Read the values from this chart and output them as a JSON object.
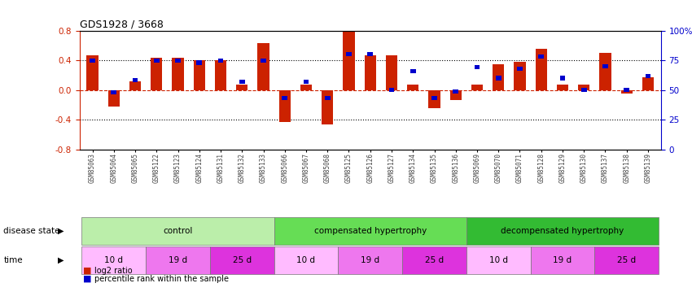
{
  "title": "GDS1928 / 3668",
  "samples": [
    "GSM85063",
    "GSM85064",
    "GSM85065",
    "GSM85122",
    "GSM85123",
    "GSM85124",
    "GSM85131",
    "GSM85132",
    "GSM85133",
    "GSM85066",
    "GSM85067",
    "GSM85068",
    "GSM85125",
    "GSM85126",
    "GSM85127",
    "GSM85134",
    "GSM85135",
    "GSM85136",
    "GSM85069",
    "GSM85070",
    "GSM85071",
    "GSM85128",
    "GSM85129",
    "GSM85130",
    "GSM85137",
    "GSM85138",
    "GSM85139"
  ],
  "log2_ratio": [
    0.47,
    -0.22,
    0.12,
    0.43,
    0.43,
    0.4,
    0.4,
    0.07,
    0.63,
    -0.43,
    0.07,
    -0.46,
    0.8,
    0.47,
    0.47,
    0.07,
    -0.24,
    -0.13,
    0.07,
    0.35,
    0.38,
    0.55,
    0.07,
    0.07,
    0.5,
    -0.05,
    0.17
  ],
  "percentile": [
    75,
    48,
    58,
    75,
    75,
    73,
    75,
    57,
    75,
    43,
    57,
    43,
    80,
    80,
    50,
    66,
    43,
    49,
    69,
    60,
    68,
    78,
    60,
    50,
    70,
    50,
    62
  ],
  "bar_color": "#cc2200",
  "point_color": "#0000cc",
  "zero_line_color": "#cc2200",
  "yticks_left": [
    -0.8,
    -0.4,
    0.0,
    0.4,
    0.8
  ],
  "yticks_right": [
    0,
    25,
    50,
    75,
    100
  ],
  "disease_states": [
    {
      "label": "control",
      "start": 0,
      "end": 9,
      "color": "#bbeeaa"
    },
    {
      "label": "compensated hypertrophy",
      "start": 9,
      "end": 18,
      "color": "#66dd55"
    },
    {
      "label": "decompensated hypertrophy",
      "start": 18,
      "end": 27,
      "color": "#33bb33"
    }
  ],
  "time_groups": [
    {
      "label": "10 d",
      "start": 0,
      "end": 3,
      "color": "#ffbbff"
    },
    {
      "label": "19 d",
      "start": 3,
      "end": 6,
      "color": "#ee77ee"
    },
    {
      "label": "25 d",
      "start": 6,
      "end": 9,
      "color": "#dd33dd"
    },
    {
      "label": "10 d",
      "start": 9,
      "end": 12,
      "color": "#ffbbff"
    },
    {
      "label": "19 d",
      "start": 12,
      "end": 15,
      "color": "#ee77ee"
    },
    {
      "label": "25 d",
      "start": 15,
      "end": 18,
      "color": "#dd33dd"
    },
    {
      "label": "10 d",
      "start": 18,
      "end": 21,
      "color": "#ffbbff"
    },
    {
      "label": "19 d",
      "start": 21,
      "end": 24,
      "color": "#ee77ee"
    },
    {
      "label": "25 d",
      "start": 24,
      "end": 27,
      "color": "#dd33dd"
    }
  ],
  "legend_log2": "log2 ratio",
  "legend_pct": "percentile rank within the sample",
  "figsize": [
    8.5,
    3.75
  ],
  "dpi": 100
}
